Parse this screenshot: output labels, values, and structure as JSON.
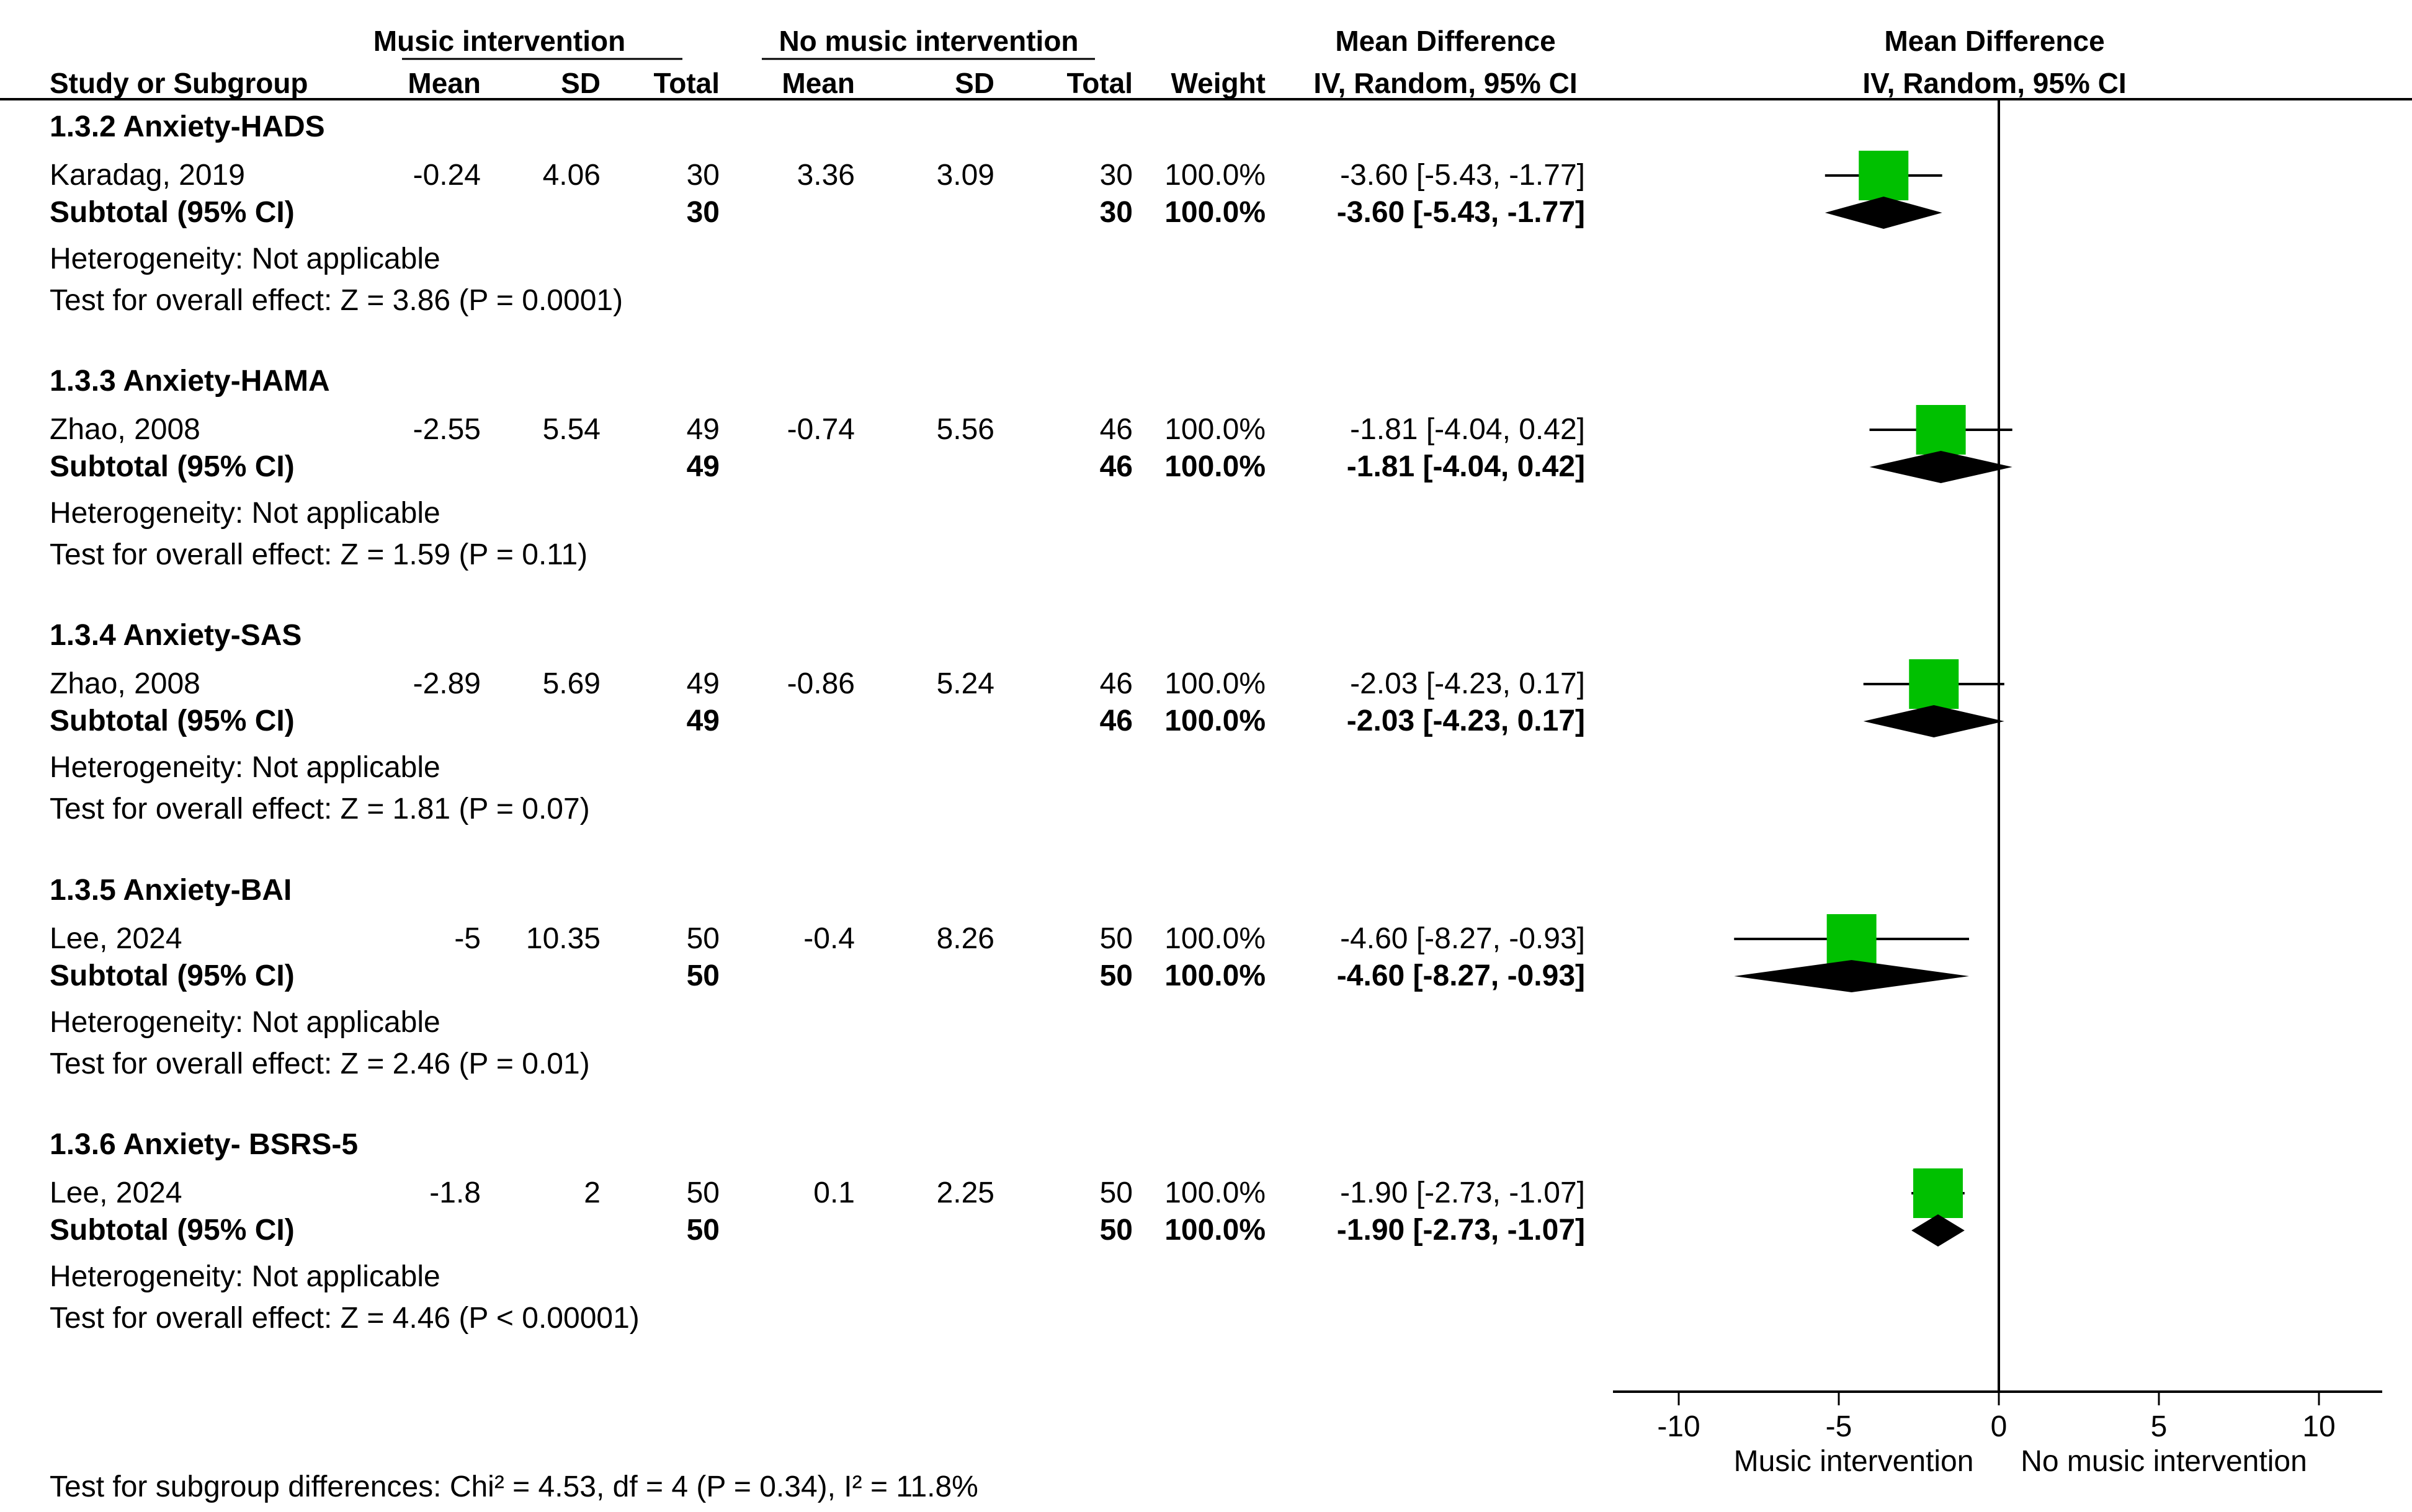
{
  "header": {
    "group1": "Music intervention",
    "group2": "No music intervention",
    "md_top": "Mean Difference",
    "md_sub": "IV, Random, 95% CI",
    "plot_top": "Mean Difference",
    "plot_sub": "IV, Random, 95% CI",
    "col_study": "Study or Subgroup",
    "col_mean1": "Mean",
    "col_sd1": "SD",
    "col_total1": "Total",
    "col_mean2": "Mean",
    "col_sd2": "SD",
    "col_total2": "Total",
    "col_weight": "Weight"
  },
  "subgroups": [
    {
      "title": "1.3.2 Anxiety-HADS",
      "study": {
        "name": "Karadag, 2019",
        "mean1": "-0.24",
        "sd1": "4.06",
        "total1": "30",
        "mean2": "3.36",
        "sd2": "3.09",
        "total2": "30",
        "weight": "100.0%",
        "ci": "-3.60 [-5.43, -1.77]"
      },
      "subtotal": {
        "label": "Subtotal (95% CI)",
        "total1": "30",
        "total2": "30",
        "weight": "100.0%",
        "ci": "-3.60 [-5.43, -1.77]"
      },
      "heterogeneity": "Heterogeneity: Not applicable",
      "overall": "Test for overall effect: Z = 3.86 (P = 0.0001)"
    },
    {
      "title": "1.3.3 Anxiety-HAMA",
      "study": {
        "name": "Zhao, 2008",
        "mean1": "-2.55",
        "sd1": "5.54",
        "total1": "49",
        "mean2": "-0.74",
        "sd2": "5.56",
        "total2": "46",
        "weight": "100.0%",
        "ci": "-1.81 [-4.04, 0.42]"
      },
      "subtotal": {
        "label": "Subtotal (95% CI)",
        "total1": "49",
        "total2": "46",
        "weight": "100.0%",
        "ci": "-1.81 [-4.04, 0.42]"
      },
      "heterogeneity": "Heterogeneity: Not applicable",
      "overall": "Test for overall effect: Z = 1.59 (P = 0.11)"
    },
    {
      "title": "1.3.4 Anxiety-SAS",
      "study": {
        "name": "Zhao, 2008",
        "mean1": "-2.89",
        "sd1": "5.69",
        "total1": "49",
        "mean2": "-0.86",
        "sd2": "5.24",
        "total2": "46",
        "weight": "100.0%",
        "ci": "-2.03 [-4.23, 0.17]"
      },
      "subtotal": {
        "label": "Subtotal (95% CI)",
        "total1": "49",
        "total2": "46",
        "weight": "100.0%",
        "ci": "-2.03 [-4.23, 0.17]"
      },
      "heterogeneity": "Heterogeneity: Not applicable",
      "overall": "Test for overall effect: Z = 1.81 (P = 0.07)"
    },
    {
      "title": "1.3.5 Anxiety-BAI",
      "study": {
        "name": "Lee, 2024",
        "mean1": "-5",
        "sd1": "10.35",
        "total1": "50",
        "mean2": "-0.4",
        "sd2": "8.26",
        "total2": "50",
        "weight": "100.0%",
        "ci": "-4.60 [-8.27, -0.93]"
      },
      "subtotal": {
        "label": "Subtotal (95% CI)",
        "total1": "50",
        "total2": "50",
        "weight": "100.0%",
        "ci": "-4.60 [-8.27, -0.93]"
      },
      "heterogeneity": "Heterogeneity: Not applicable",
      "overall": "Test for overall effect: Z = 2.46 (P = 0.01)"
    },
    {
      "title": "1.3.6 Anxiety- BSRS-5",
      "study": {
        "name": "Lee, 2024",
        "mean1": "-1.8",
        "sd1": "2",
        "total1": "50",
        "mean2": "0.1",
        "sd2": "2.25",
        "total2": "50",
        "weight": "100.0%",
        "ci": "-1.90 [-2.73, -1.07]"
      },
      "subtotal": {
        "label": "Subtotal (95% CI)",
        "total1": "50",
        "total2": "50",
        "weight": "100.0%",
        "ci": "-1.90 [-2.73, -1.07]"
      },
      "heterogeneity": "Heterogeneity: Not applicable",
      "overall": "Test for overall effect: Z = 4.46 (P < 0.00001)"
    }
  ],
  "footer": "Test for subgroup differences: Chi² = 4.53, df = 4 (P = 0.34), I² = 11.8%",
  "chart_data": {
    "type": "forest",
    "title": "Mean Difference IV, Random, 95% CI",
    "xlim": [
      -12,
      12
    ],
    "xticks": [
      -10,
      -5,
      0,
      5,
      10
    ],
    "xtick_labels": [
      "-10",
      "-5",
      "0",
      "5",
      "10"
    ],
    "left_label": "Music intervention",
    "right_label": "No music intervention",
    "marker_color": "#00c000",
    "points": [
      {
        "subgroup": "1.3.2 Anxiety-HADS",
        "study": "Karadag, 2019",
        "md": -3.6,
        "lower": -5.43,
        "upper": -1.77
      },
      {
        "subgroup": "1.3.3 Anxiety-HAMA",
        "study": "Zhao, 2008",
        "md": -1.81,
        "lower": -4.04,
        "upper": 0.42
      },
      {
        "subgroup": "1.3.4 Anxiety-SAS",
        "study": "Zhao, 2008",
        "md": -2.03,
        "lower": -4.23,
        "upper": 0.17
      },
      {
        "subgroup": "1.3.5 Anxiety-BAI",
        "study": "Lee, 2024",
        "md": -4.6,
        "lower": -8.27,
        "upper": -0.93
      },
      {
        "subgroup": "1.3.6 Anxiety- BSRS-5",
        "study": "Lee, 2024",
        "md": -1.9,
        "lower": -2.73,
        "upper": -1.07
      }
    ]
  }
}
